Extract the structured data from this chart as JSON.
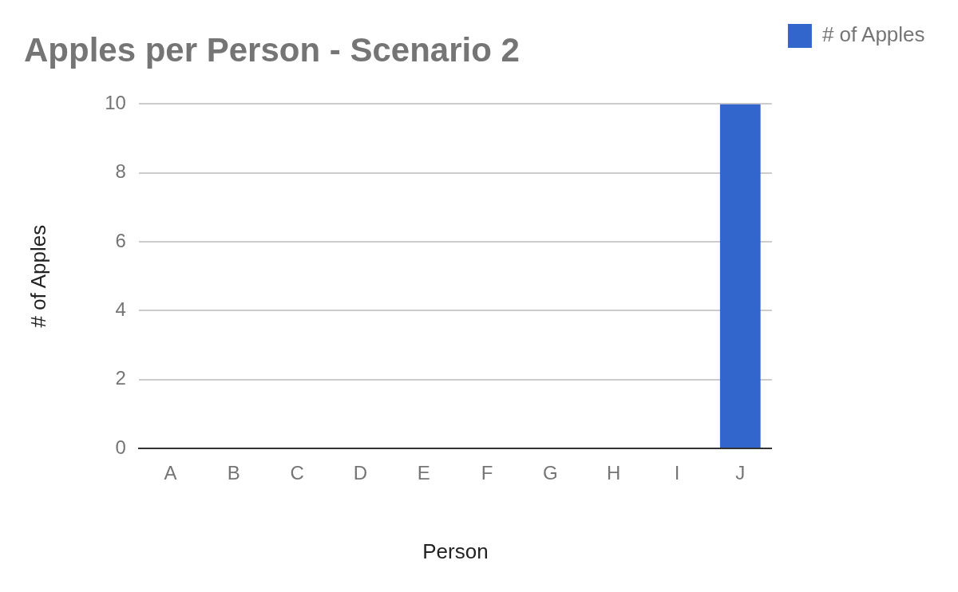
{
  "chart_data": {
    "type": "bar",
    "title": "Apples per Person - Scenario 2",
    "xlabel": "Person",
    "ylabel": "# of Apples",
    "categories": [
      "A",
      "B",
      "C",
      "D",
      "E",
      "F",
      "G",
      "H",
      "I",
      "J"
    ],
    "series": [
      {
        "name": "# of Apples",
        "color": "#3366cc",
        "values": [
          0,
          0,
          0,
          0,
          0,
          0,
          0,
          0,
          0,
          10
        ]
      }
    ],
    "ylim": [
      0,
      10
    ],
    "yticks": [
      0,
      2,
      4,
      6,
      8,
      10
    ],
    "grid": "y",
    "legend": "top right"
  }
}
